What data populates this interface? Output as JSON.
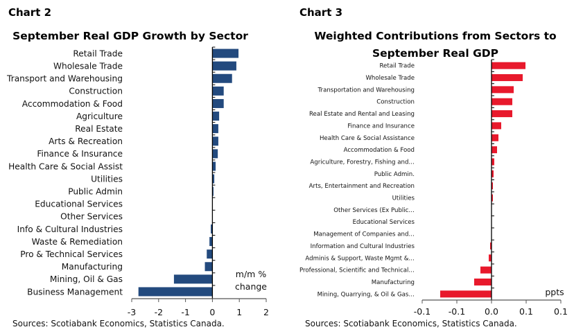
{
  "chart_data": [
    {
      "label": "Chart 2",
      "type": "bar",
      "orientation": "horizontal",
      "title": "September Real GDP Growth by Sector",
      "categories": [
        "Retail Trade",
        "Wholesale Trade",
        "Transport and Warehousing",
        "Construction",
        "Accommodation & Food",
        "Agriculture",
        "Real Estate",
        "Arts & Recreation",
        "Finance & Insurance",
        "Health Care & Social Assist",
        "Utilities",
        "Public Admin",
        "Educational Services",
        "Other Services",
        "Info & Cultural Industries",
        "Waste & Remediation",
        "Pro & Technical Services",
        "Manufacturing",
        "Mining, Oil & Gas",
        "Business Management"
      ],
      "values": [
        0.97,
        0.89,
        0.73,
        0.42,
        0.42,
        0.25,
        0.22,
        0.22,
        0.2,
        0.12,
        0.07,
        0.04,
        0,
        0,
        -0.06,
        -0.11,
        -0.21,
        -0.28,
        -1.43,
        -2.75
      ],
      "xlim": [
        -3,
        2
      ],
      "ticks": [
        "-3",
        "-2",
        "-1",
        "0",
        "1",
        "2"
      ],
      "unit_label": [
        "m/m %",
        "change"
      ],
      "color": "#234a7e",
      "source": "Sources: Scotiabank Economics, Statistics Canada.",
      "grid": false
    },
    {
      "label": "Chart 3",
      "type": "bar",
      "orientation": "horizontal",
      "title": [
        "Weighted Contributions from Sectors to",
        "September Real GDP"
      ],
      "categories": [
        "Retail Trade",
        "Wholesale Trade",
        "Transportation and Warehousing",
        "Construction",
        "Real Estate and Rental and Leasing",
        "Finance and Insurance",
        "Health Care & Social Assistance",
        "Accommodation & Food",
        "Agriculture, Forestry, Fishing and…",
        "Public Admin.",
        "Arts, Entertainment and Recreation",
        "Utilities",
        "Other Services (Ex Public…",
        "Educational Services",
        "Management of Companies and…",
        "Information and Cultural Industries",
        "Adminis & Support, Waste Mgmt &…",
        "Professional, Scientific and Technical…",
        "Manufacturing",
        "Mining, Quarrying, & Oil & Gas…"
      ],
      "values": [
        0.049,
        0.045,
        0.032,
        0.03,
        0.03,
        0.014,
        0.01,
        0.008,
        0.004,
        0.003,
        0.002,
        0.002,
        0,
        0,
        0,
        -0.002,
        -0.004,
        -0.016,
        -0.025,
        -0.074
      ],
      "xlim": [
        -0.1,
        0.1
      ],
      "ticks": [
        "-0.1",
        "-0.1",
        "0.0",
        "0.1",
        "0.1"
      ],
      "unit_label": "ppts",
      "color": "#e8192c",
      "source": "Sources: Scotiabank Economics, Statistics Canada.",
      "grid": false
    }
  ]
}
